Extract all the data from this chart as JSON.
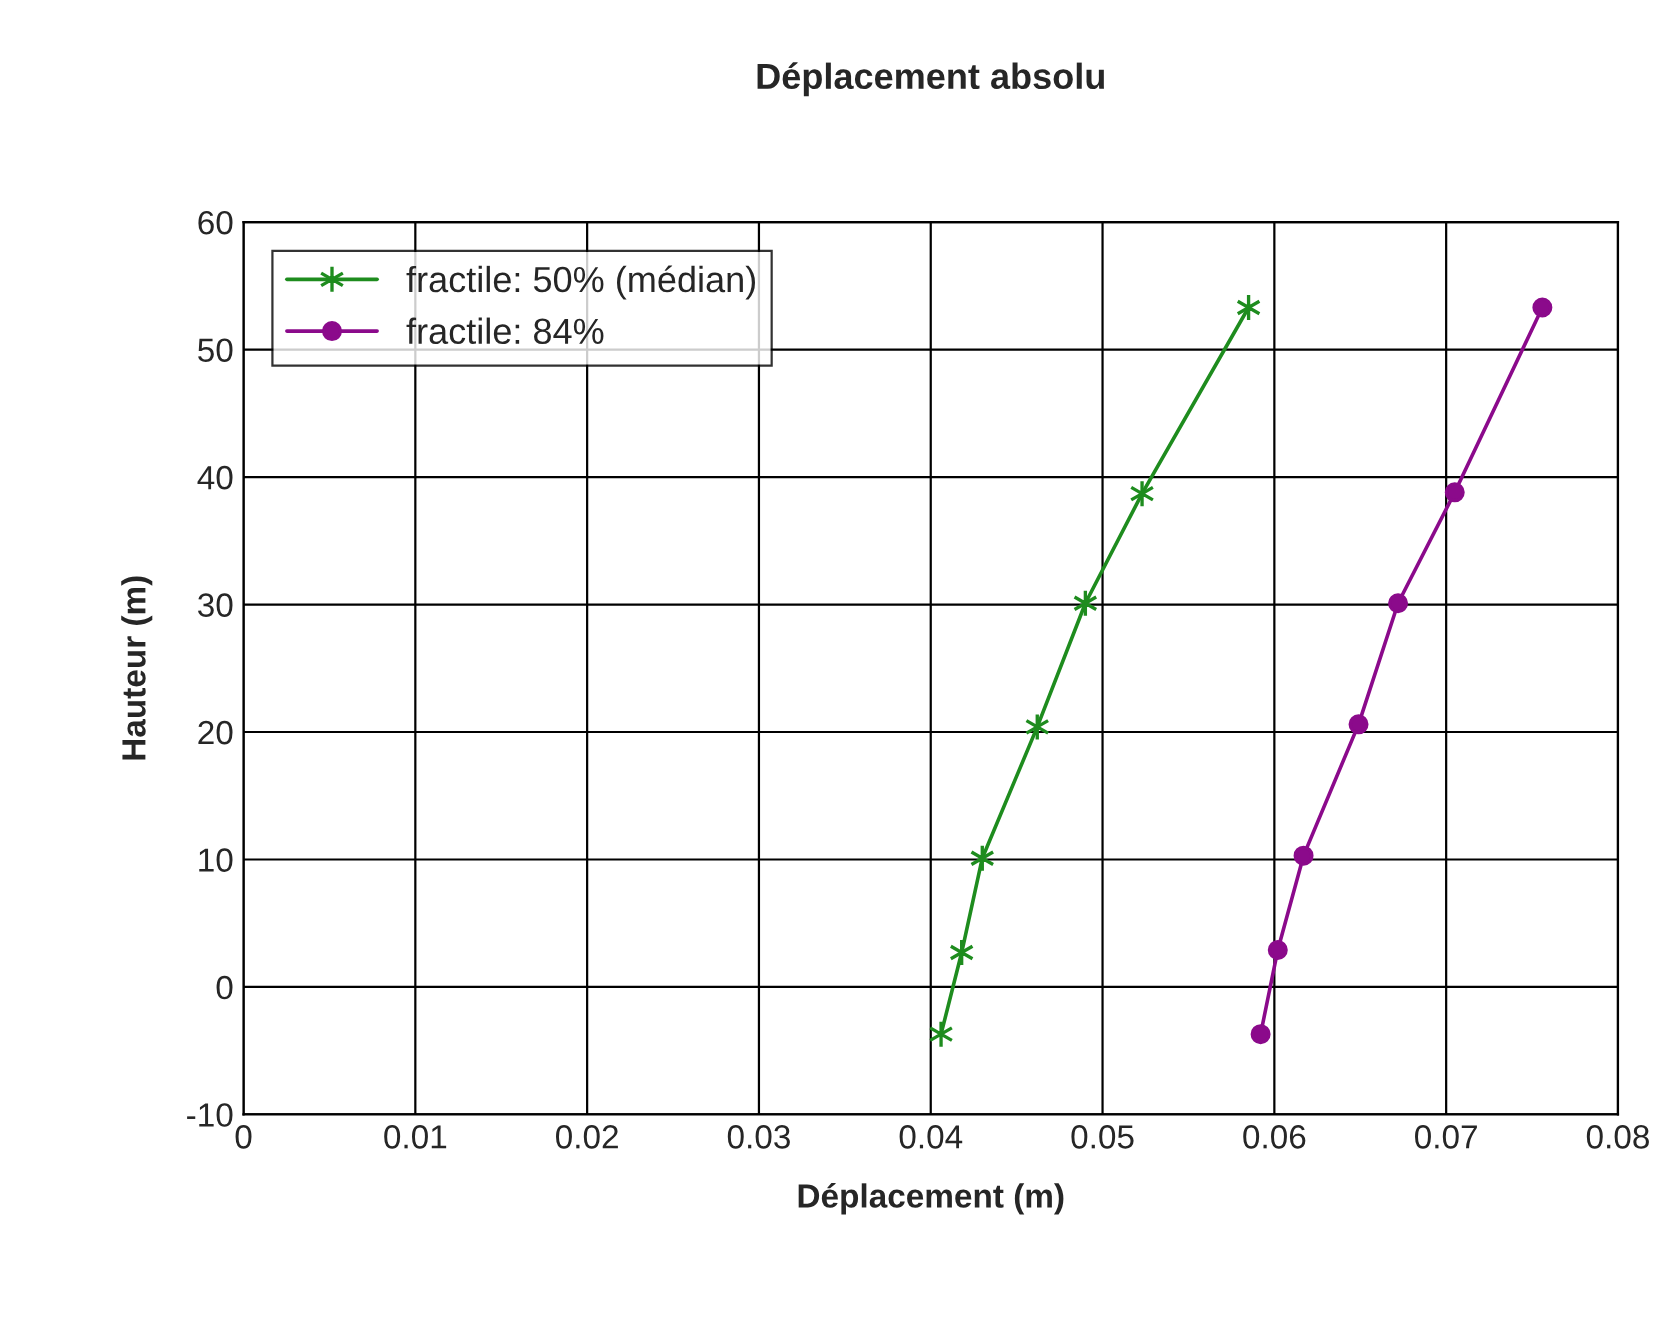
{
  "chart_data": {
    "type": "line",
    "title": "Déplacement absolu",
    "xlabel": "Déplacement (m)",
    "ylabel": "Hauteur (m)",
    "series": [
      {
        "name": "fractile: 50% (médian)",
        "color": "#1e8c1e",
        "marker": "cross",
        "x": [
          0.0406,
          0.0418,
          0.043,
          0.0462,
          0.049,
          0.0523,
          0.0585
        ],
        "values": [
          -3.7,
          2.7,
          10.1,
          20.4,
          30.1,
          38.7,
          53.3
        ]
      },
      {
        "name": "fractile: 84%",
        "color": "#8b0a8b",
        "marker": "circle",
        "x": [
          0.0592,
          0.0602,
          0.0617,
          0.0649,
          0.0672,
          0.0705,
          0.0756
        ],
        "values": [
          -3.7,
          2.9,
          10.3,
          20.6,
          30.1,
          38.8,
          53.3
        ]
      }
    ],
    "xlim": [
      0,
      0.08
    ],
    "xticks": [
      0,
      0.01,
      0.02,
      0.03,
      0.04,
      0.05,
      0.06,
      0.07,
      0.08
    ],
    "ylim": [
      -10,
      60
    ],
    "yticks": [
      -10,
      0,
      10,
      20,
      30,
      40,
      50,
      60
    ],
    "grid": true,
    "legend": "top left"
  }
}
